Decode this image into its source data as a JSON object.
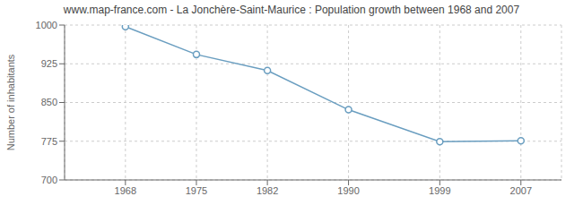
{
  "chart_data": {
    "type": "line",
    "title": "www.map-france.com - La Jonchère-Saint-Maurice : Population growth between 1968 and 2007",
    "ylabel": "Number of inhabitants",
    "x": [
      1968,
      1975,
      1982,
      1990,
      1999,
      2007
    ],
    "values": [
      997,
      943,
      912,
      836,
      774,
      776
    ],
    "color": "#6a9ec0",
    "marker": "circle",
    "xlim": [
      1962,
      2011
    ],
    "xticks": [
      1968,
      1975,
      1982,
      1990,
      1999,
      2007
    ],
    "ylim": [
      700,
      1000
    ],
    "yticks": [
      700,
      775,
      850,
      925,
      1000
    ],
    "grid": true
  }
}
